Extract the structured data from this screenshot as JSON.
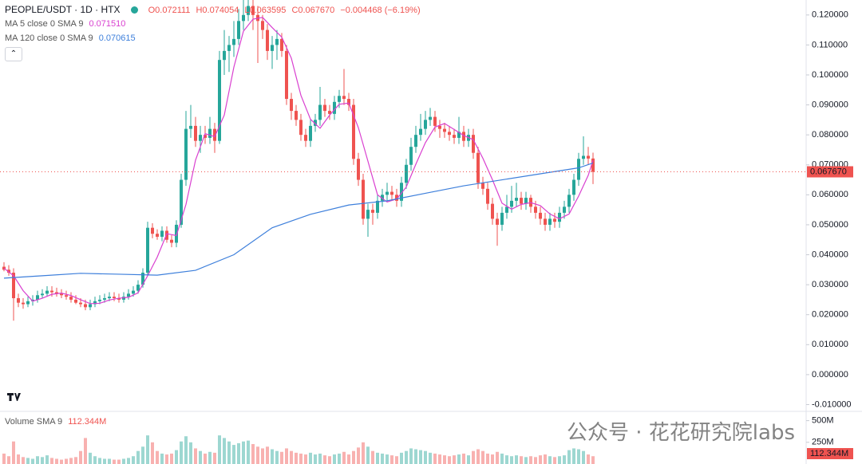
{
  "chart_data": {
    "type": "candlestick",
    "title": "PEOPLE/USDT · 1D · HTX",
    "ohlc_labels": [
      "O0.072111",
      "H0.074054",
      "L0.063595",
      "C0.067670"
    ],
    "change_label": "−0.004468 (−6.19%)",
    "up_color": "#26a69a",
    "down_color": "#ef5350",
    "open": [
      0.036,
      0.035,
      0.034,
      0.0255,
      0.024,
      0.0235,
      0.0245,
      0.025,
      0.0265,
      0.027,
      0.028,
      0.0275,
      0.027,
      0.0265,
      0.026,
      0.025,
      0.024,
      0.0235,
      0.0225,
      0.0235,
      0.0245,
      0.025,
      0.0255,
      0.026,
      0.0255,
      0.025,
      0.026,
      0.027,
      0.028,
      0.03,
      0.034,
      0.049,
      0.047,
      0.046,
      0.048,
      0.045,
      0.044,
      0.05,
      0.065,
      0.082,
      0.083,
      0.078,
      0.08,
      0.079,
      0.082,
      0.078,
      0.105,
      0.108,
      0.11,
      0.112,
      0.118,
      0.12,
      0.123,
      0.12,
      0.118,
      0.115,
      0.108,
      0.11,
      0.112,
      0.108,
      0.092,
      0.088,
      0.085,
      0.08,
      0.078,
      0.083,
      0.085,
      0.09,
      0.088,
      0.087,
      0.091,
      0.093,
      0.092,
      0.09,
      0.072,
      0.065,
      0.052,
      0.055,
      0.054,
      0.058,
      0.06,
      0.061,
      0.06,
      0.058,
      0.064,
      0.07,
      0.076,
      0.08,
      0.082,
      0.085,
      0.086,
      0.083,
      0.082,
      0.081,
      0.08,
      0.079,
      0.081,
      0.078,
      0.08,
      0.074,
      0.064,
      0.062,
      0.057,
      0.052,
      0.05,
      0.054,
      0.056,
      0.058,
      0.059,
      0.057,
      0.059,
      0.056,
      0.054,
      0.052,
      0.05,
      0.052,
      0.051,
      0.054,
      0.056,
      0.06,
      0.065,
      0.072,
      0.073,
      0.072111
    ],
    "high": [
      0.0375,
      0.0365,
      0.0355,
      0.027,
      0.0255,
      0.026,
      0.0265,
      0.028,
      0.0285,
      0.0295,
      0.0295,
      0.029,
      0.0285,
      0.028,
      0.0275,
      0.0265,
      0.0255,
      0.025,
      0.025,
      0.026,
      0.0265,
      0.027,
      0.0275,
      0.0275,
      0.027,
      0.0275,
      0.0285,
      0.0295,
      0.0315,
      0.0355,
      0.051,
      0.0505,
      0.0485,
      0.0495,
      0.0495,
      0.0465,
      0.0515,
      0.067,
      0.088,
      0.09,
      0.086,
      0.083,
      0.083,
      0.086,
      0.084,
      0.108,
      0.115,
      0.113,
      0.118,
      0.122,
      0.125,
      0.126,
      0.126,
      0.123,
      0.12,
      0.117,
      0.113,
      0.115,
      0.114,
      0.11,
      0.094,
      0.09,
      0.087,
      0.082,
      0.085,
      0.087,
      0.096,
      0.092,
      0.09,
      0.093,
      0.095,
      0.102,
      0.094,
      0.092,
      0.074,
      0.067,
      0.057,
      0.057,
      0.06,
      0.062,
      0.064,
      0.063,
      0.062,
      0.066,
      0.072,
      0.079,
      0.083,
      0.087,
      0.088,
      0.089,
      0.088,
      0.085,
      0.084,
      0.083,
      0.082,
      0.086,
      0.083,
      0.082,
      0.082,
      0.076,
      0.066,
      0.064,
      0.059,
      0.054,
      0.056,
      0.06,
      0.063,
      0.064,
      0.061,
      0.061,
      0.06,
      0.058,
      0.056,
      0.054,
      0.054,
      0.054,
      0.056,
      0.058,
      0.062,
      0.067,
      0.074,
      0.0795,
      0.076,
      0.074054
    ],
    "low": [
      0.0345,
      0.033,
      0.018,
      0.0225,
      0.022,
      0.0225,
      0.023,
      0.024,
      0.0255,
      0.026,
      0.026,
      0.026,
      0.0255,
      0.025,
      0.024,
      0.0235,
      0.0225,
      0.0215,
      0.0215,
      0.0225,
      0.0235,
      0.024,
      0.0245,
      0.0245,
      0.024,
      0.024,
      0.025,
      0.026,
      0.027,
      0.029,
      0.033,
      0.0455,
      0.045,
      0.0445,
      0.044,
      0.0425,
      0.0425,
      0.049,
      0.063,
      0.079,
      0.076,
      0.074,
      0.077,
      0.077,
      0.074,
      0.077,
      0.1,
      0.101,
      0.106,
      0.11,
      0.115,
      0.118,
      0.115,
      0.104,
      0.112,
      0.105,
      0.102,
      0.105,
      0.106,
      0.09,
      0.085,
      0.083,
      0.078,
      0.076,
      0.076,
      0.081,
      0.083,
      0.086,
      0.085,
      0.085,
      0.089,
      0.09,
      0.088,
      0.07,
      0.063,
      0.05,
      0.046,
      0.05,
      0.052,
      0.056,
      0.058,
      0.058,
      0.056,
      0.056,
      0.062,
      0.068,
      0.074,
      0.078,
      0.08,
      0.083,
      0.081,
      0.079,
      0.079,
      0.078,
      0.077,
      0.077,
      0.076,
      0.076,
      0.072,
      0.062,
      0.06,
      0.055,
      0.05,
      0.043,
      0.048,
      0.052,
      0.054,
      0.056,
      0.055,
      0.055,
      0.054,
      0.052,
      0.05,
      0.048,
      0.048,
      0.049,
      0.049,
      0.052,
      0.054,
      0.058,
      0.063,
      0.07,
      0.07,
      0.063595
    ],
    "close": [
      0.035,
      0.034,
      0.0255,
      0.024,
      0.0235,
      0.0245,
      0.025,
      0.0265,
      0.027,
      0.028,
      0.0275,
      0.027,
      0.0265,
      0.026,
      0.025,
      0.024,
      0.0235,
      0.0225,
      0.0235,
      0.0245,
      0.025,
      0.0255,
      0.026,
      0.0255,
      0.025,
      0.026,
      0.027,
      0.028,
      0.03,
      0.034,
      0.049,
      0.047,
      0.046,
      0.048,
      0.045,
      0.044,
      0.05,
      0.065,
      0.082,
      0.083,
      0.078,
      0.08,
      0.079,
      0.082,
      0.078,
      0.105,
      0.108,
      0.11,
      0.112,
      0.118,
      0.12,
      0.123,
      0.12,
      0.118,
      0.115,
      0.108,
      0.11,
      0.112,
      0.108,
      0.092,
      0.088,
      0.085,
      0.08,
      0.078,
      0.083,
      0.085,
      0.09,
      0.088,
      0.087,
      0.091,
      0.093,
      0.092,
      0.09,
      0.072,
      0.065,
      0.052,
      0.055,
      0.054,
      0.058,
      0.06,
      0.061,
      0.06,
      0.058,
      0.064,
      0.07,
      0.076,
      0.08,
      0.082,
      0.085,
      0.086,
      0.083,
      0.082,
      0.081,
      0.08,
      0.079,
      0.081,
      0.078,
      0.08,
      0.074,
      0.064,
      0.062,
      0.057,
      0.052,
      0.05,
      0.054,
      0.056,
      0.058,
      0.059,
      0.057,
      0.059,
      0.056,
      0.054,
      0.052,
      0.05,
      0.052,
      0.051,
      0.054,
      0.056,
      0.06,
      0.065,
      0.072,
      0.073,
      0.0721,
      0.06767
    ],
    "last_price_label": "0.067670",
    "series": [
      {
        "name": "MA 5 close 0 SMA 9",
        "value_label": "0.071510",
        "color": "#d940d0",
        "x": [
          0,
          2,
          4,
          6,
          8,
          10,
          12,
          14,
          16,
          18,
          20,
          22,
          24,
          26,
          28,
          30,
          32,
          34,
          36,
          38,
          40,
          42,
          44,
          46,
          48,
          50,
          52,
          54,
          56,
          58,
          60,
          62,
          64,
          66,
          68,
          70,
          72,
          74,
          76,
          78,
          80,
          82,
          84,
          86,
          88,
          90,
          92,
          94,
          96,
          98,
          100,
          102,
          104,
          106,
          108,
          110,
          112,
          114,
          116,
          118,
          120,
          122,
          123
        ],
        "values": [
          0.0355,
          0.033,
          0.028,
          0.0245,
          0.0255,
          0.0268,
          0.0272,
          0.0264,
          0.025,
          0.0237,
          0.0238,
          0.0249,
          0.0255,
          0.0258,
          0.0273,
          0.033,
          0.0392,
          0.047,
          0.0464,
          0.0568,
          0.0716,
          0.0804,
          0.0794,
          0.0866,
          0.1026,
          0.1146,
          0.1186,
          0.1192,
          0.1158,
          0.1126,
          0.1056,
          0.0932,
          0.0852,
          0.0822,
          0.0866,
          0.0902,
          0.0906,
          0.0824,
          0.0712,
          0.06,
          0.0576,
          0.0586,
          0.0626,
          0.0702,
          0.0774,
          0.0826,
          0.0838,
          0.0818,
          0.0798,
          0.0784,
          0.0722,
          0.065,
          0.0572,
          0.0552,
          0.0568,
          0.0574,
          0.0564,
          0.0536,
          0.052,
          0.0536,
          0.0596,
          0.0665,
          0.07151
        ]
      },
      {
        "name": "MA 120 close 0 SMA 9",
        "value_label": "0.070615",
        "color": "#3d7fdb",
        "x": [
          0,
          8,
          16,
          24,
          32,
          40,
          48,
          56,
          64,
          72,
          80,
          88,
          96,
          104,
          112,
          120,
          123
        ],
        "values": [
          0.0322,
          0.033,
          0.0338,
          0.0335,
          0.0332,
          0.0348,
          0.04,
          0.049,
          0.0535,
          0.0566,
          0.058,
          0.0605,
          0.063,
          0.065,
          0.067,
          0.069,
          0.070615
        ]
      }
    ],
    "ylim": [
      -0.012,
      0.125
    ],
    "yticks": [
      {
        "value": 0.12,
        "label": "0.120000"
      },
      {
        "value": 0.11,
        "label": "0.110000"
      },
      {
        "value": 0.1,
        "label": "0.100000"
      },
      {
        "value": 0.09,
        "label": "0.090000"
      },
      {
        "value": 0.08,
        "label": "0.080000"
      },
      {
        "value": 0.07,
        "label": "0.070000"
      },
      {
        "value": 0.06,
        "label": "0.060000"
      },
      {
        "value": 0.05,
        "label": "0.050000"
      },
      {
        "value": 0.04,
        "label": "0.040000"
      },
      {
        "value": 0.03,
        "label": "0.030000"
      },
      {
        "value": 0.02,
        "label": "0.020000"
      },
      {
        "value": 0.01,
        "label": "0.010000"
      },
      {
        "value": 0,
        "label": "0.000000"
      },
      {
        "value": -0.01,
        "label": "-0.010000"
      }
    ],
    "volume_title": "Volume SMA 9",
    "volume_label": "112.344M",
    "volume": [
      120,
      90,
      260,
      110,
      80,
      70,
      60,
      90,
      80,
      100,
      70,
      60,
      50,
      60,
      70,
      80,
      150,
      300,
      130,
      90,
      70,
      60,
      60,
      50,
      50,
      60,
      70,
      90,
      150,
      200,
      330,
      250,
      150,
      120,
      110,
      120,
      160,
      260,
      320,
      250,
      180,
      150,
      120,
      140,
      130,
      330,
      300,
      260,
      220,
      240,
      260,
      270,
      230,
      200,
      180,
      200,
      170,
      150,
      140,
      180,
      150,
      130,
      120,
      110,
      130,
      110,
      120,
      100,
      90,
      110,
      120,
      140,
      110,
      150,
      190,
      250,
      200,
      150,
      130,
      120,
      110,
      100,
      90,
      130,
      150,
      180,
      170,
      160,
      150,
      130,
      120,
      110,
      100,
      90,
      100,
      110,
      120,
      100,
      150,
      170,
      150,
      120,
      110,
      140,
      120,
      100,
      90,
      100,
      90,
      80,
      90,
      80,
      100,
      110,
      90,
      80,
      90,
      100,
      160,
      180,
      170,
      150,
      110,
      90
    ],
    "vlim": [
      0,
      570
    ],
    "vticks": [
      {
        "value": 500,
        "label": "500M"
      },
      {
        "value": 250,
        "label": "250M"
      }
    ],
    "watermark": "公众号 · 花花研究院labs"
  }
}
